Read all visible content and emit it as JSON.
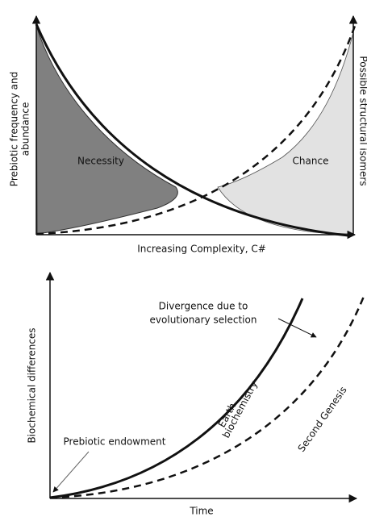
{
  "top_panel": {
    "y_label": [
      "Prebiotic frequency and",
      "abundance"
    ],
    "y2_label": "Possible structural isomers",
    "x_label": "Increasing Complexity, C#",
    "regions": [
      "Necessity",
      "Chance"
    ]
  },
  "bottom_panel": {
    "y_label": "Biochemical differences",
    "x_label": "Time",
    "annotations": [
      "Divergence due to",
      "evolutionary selection"
    ],
    "curve_labels": [
      [
        "Earth",
        "biochemistry"
      ],
      "Second Genesis"
    ],
    "origin_label": "Prebiotic endowment"
  }
}
